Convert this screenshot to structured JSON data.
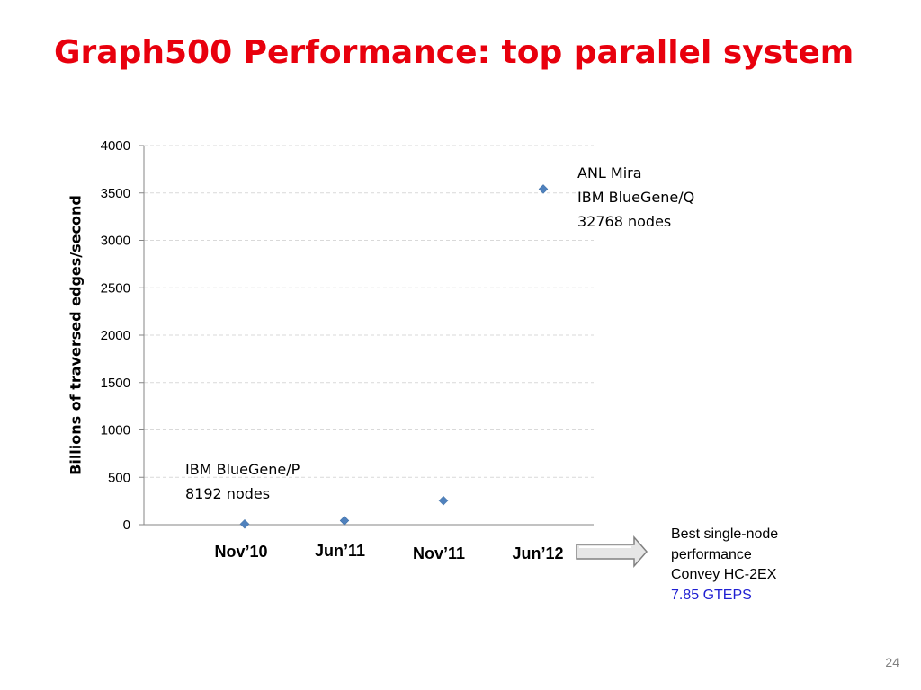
{
  "slide": {
    "title": "Graph500 Performance: top parallel system",
    "page_number": "24"
  },
  "annotations": {
    "mira": [
      "ANL Mira",
      "IBM BlueGene/Q",
      "32768 nodes"
    ],
    "bluegene_p": [
      "IBM BlueGene/P",
      "8192 nodes"
    ]
  },
  "single_node_note": {
    "lines": [
      "Best single-node",
      "performance",
      "Convey HC-2EX"
    ],
    "highlight": "7.85 GTEPS",
    "highlight_color": "#1f1fd2",
    "arrow_icon": "right-arrow-icon"
  },
  "colors": {
    "title": "#e8000d",
    "marker": "#4f81bd",
    "grid": "#d9d9d9"
  },
  "chart_data": {
    "type": "scatter",
    "title": "",
    "xlabel": "",
    "ylabel": "Billions of traversed edges/second",
    "categories": [
      "Nov’10",
      "Jun’11",
      "Nov’11",
      "Jun’12"
    ],
    "values": [
      7,
      43,
      254,
      3541
    ],
    "ylim": [
      0,
      4000
    ],
    "yticks": [
      0,
      500,
      1000,
      1500,
      2000,
      2500,
      3000,
      3500,
      4000
    ],
    "grid": true,
    "legend": "none",
    "marker": "diamond"
  }
}
